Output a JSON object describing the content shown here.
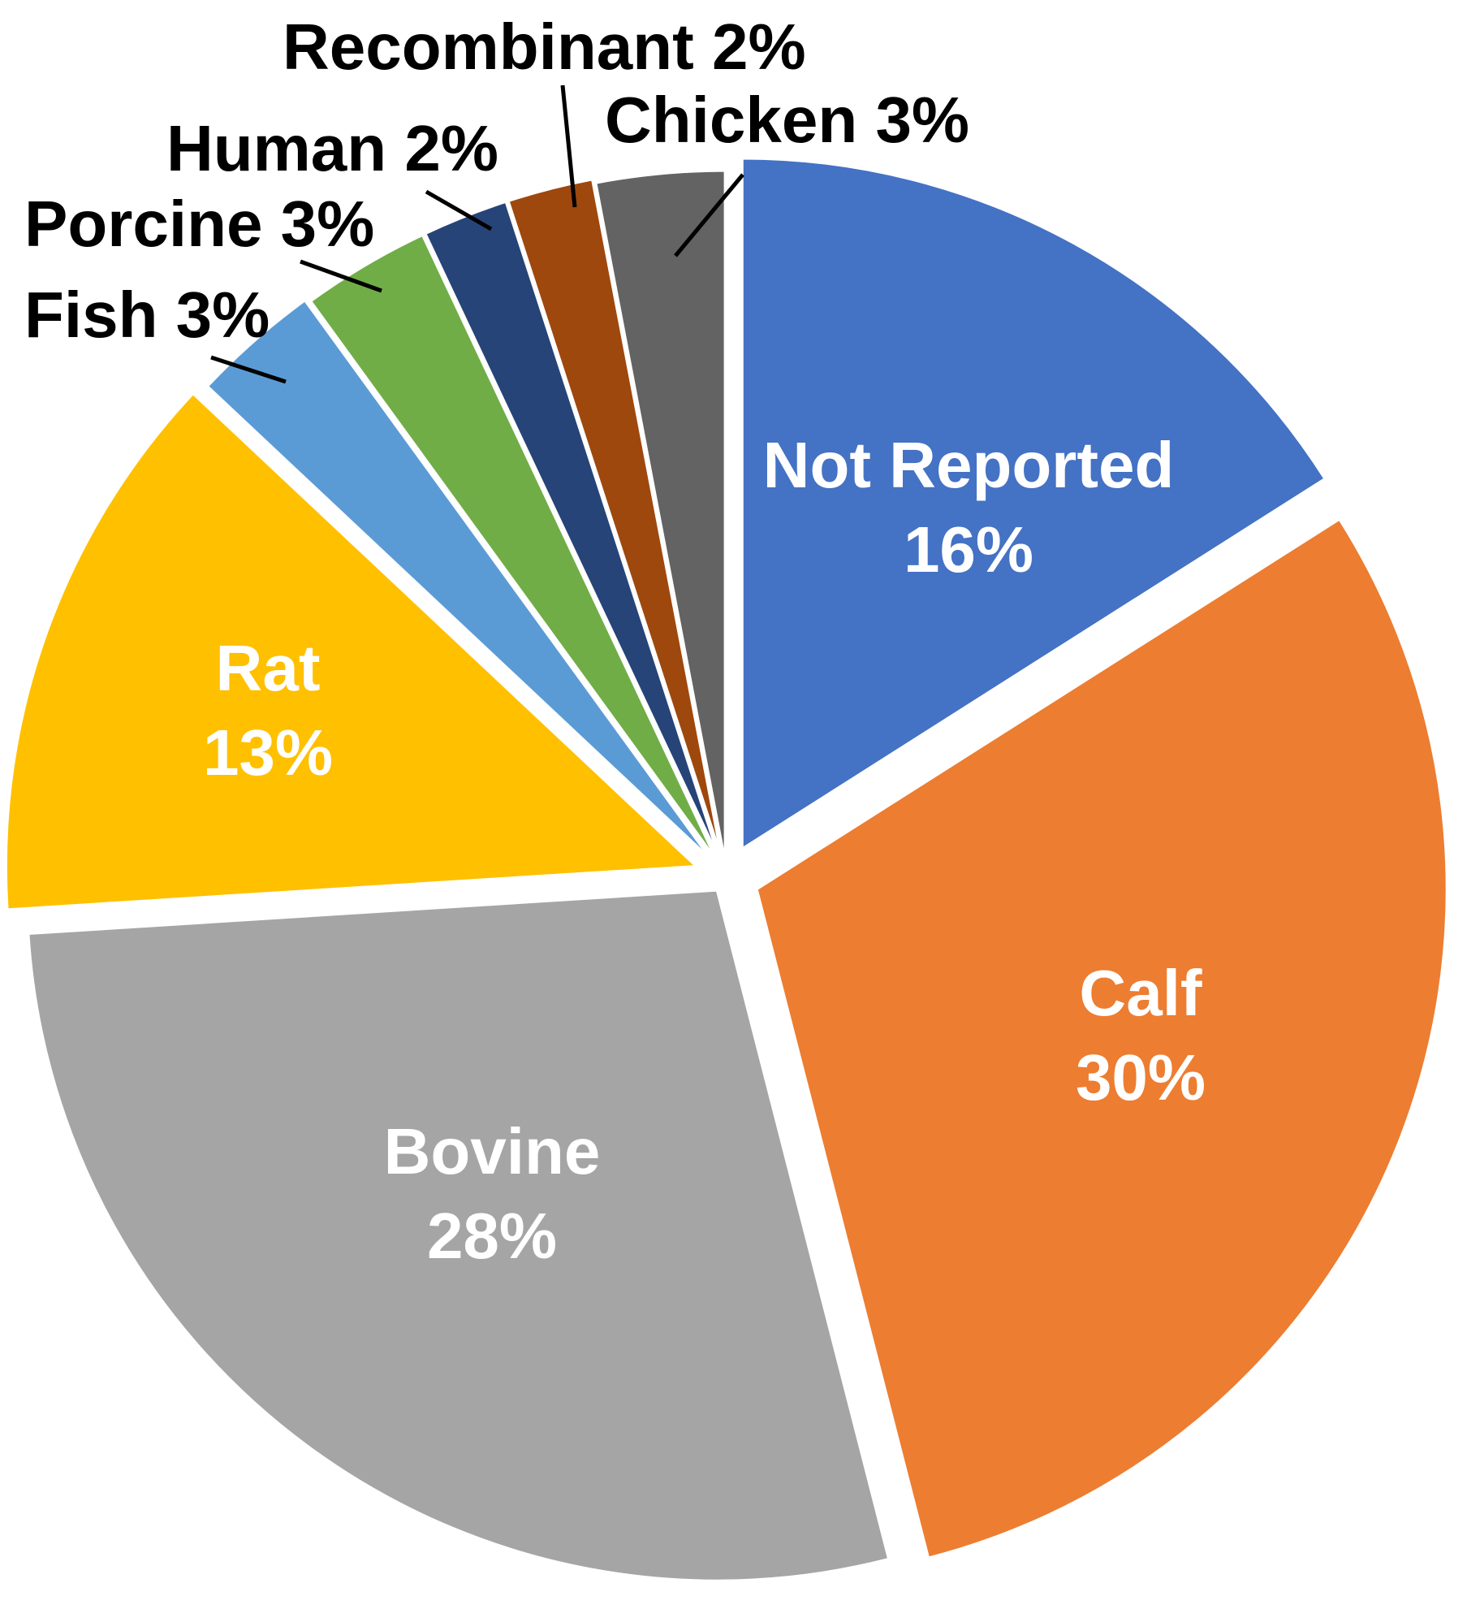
{
  "chart_data": {
    "type": "pie",
    "start": "12 o'clock",
    "direction": "clockwise",
    "exploded": true,
    "slices": [
      {
        "label": "Not Reported",
        "value": 16,
        "text": "16%",
        "color": "#4472C4",
        "label_position": "inside"
      },
      {
        "label": "Calf",
        "value": 30,
        "text": "30%",
        "color": "#ED7D31",
        "label_position": "inside"
      },
      {
        "label": "Bovine",
        "value": 28,
        "text": "28%",
        "color": "#A5A5A5",
        "label_position": "inside"
      },
      {
        "label": "Rat",
        "value": 13,
        "text": "13%",
        "color": "#FFC000",
        "label_position": "inside"
      },
      {
        "label": "Fish",
        "value": 3,
        "text": "3%",
        "color": "#5B9BD5",
        "label_position": "outside"
      },
      {
        "label": "Porcine",
        "value": 3,
        "text": "3%",
        "color": "#70AD47",
        "label_position": "outside"
      },
      {
        "label": "Human",
        "value": 2,
        "text": "2%",
        "color": "#264478",
        "label_position": "outside"
      },
      {
        "label": "Recombinant",
        "value": 2,
        "text": "2%",
        "color": "#9E480E",
        "label_position": "outside"
      },
      {
        "label": "Chicken",
        "value": 3,
        "text": "3%",
        "color": "#636363",
        "label_position": "outside"
      }
    ]
  }
}
